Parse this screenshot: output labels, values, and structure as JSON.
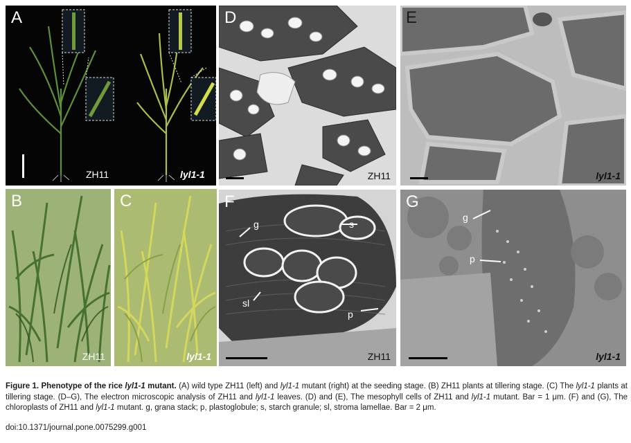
{
  "panels": {
    "A": {
      "letter": "A",
      "left_label": "ZH11",
      "right_label": "lyl1-1"
    },
    "B": {
      "letter": "B",
      "label": "ZH11"
    },
    "C": {
      "letter": "C",
      "label": "lyl1-1"
    },
    "D": {
      "letter": "D",
      "label": "ZH11"
    },
    "E": {
      "letter": "E",
      "label": "lyl1-1"
    },
    "F": {
      "letter": "F",
      "label": "ZH11",
      "annotations": [
        "g",
        "s",
        "sl",
        "p"
      ]
    },
    "G": {
      "letter": "G",
      "label": "lyl1-1",
      "annotations": [
        "g",
        "p"
      ]
    }
  },
  "caption": {
    "title_prefix": "Figure 1. Phenotype of the rice ",
    "title_gene": "lyl1-1",
    "title_suffix": " mutant.",
    "seg1": " (A) wild type ZH11 (left) and ",
    "gene1": "lyl1-1",
    "seg2": " mutant (right) at the seeding stage. (B) ZH11 plants at tillering stage. (C) The ",
    "gene2": "lyl1-1",
    "seg3": " plants at tillering stage. (D–G), The electron microscopic analysis of ZH11 and ",
    "gene3": "lyl1-1",
    "seg4": " leaves. (D) and (E), The mesophyll cells of ZH11 and ",
    "gene4": "lyl1-1",
    "seg5": " mutant. Bar = 1 μm. (F) and (G), The chloroplasts of ZH11 and ",
    "gene5": "lyl1-1",
    "seg6": " mutant. g, grana stack; p, plastoglobule; s, starch granule; sl, stroma lamellae. Bar = 2 μm."
  },
  "doi": "doi:10.1371/journal.pone.0075299.g001",
  "colors": {
    "leaf_green": "#6f9a3a",
    "mutant_leaf": "#c9d44a",
    "tem_gray": "#8a8a8a"
  }
}
